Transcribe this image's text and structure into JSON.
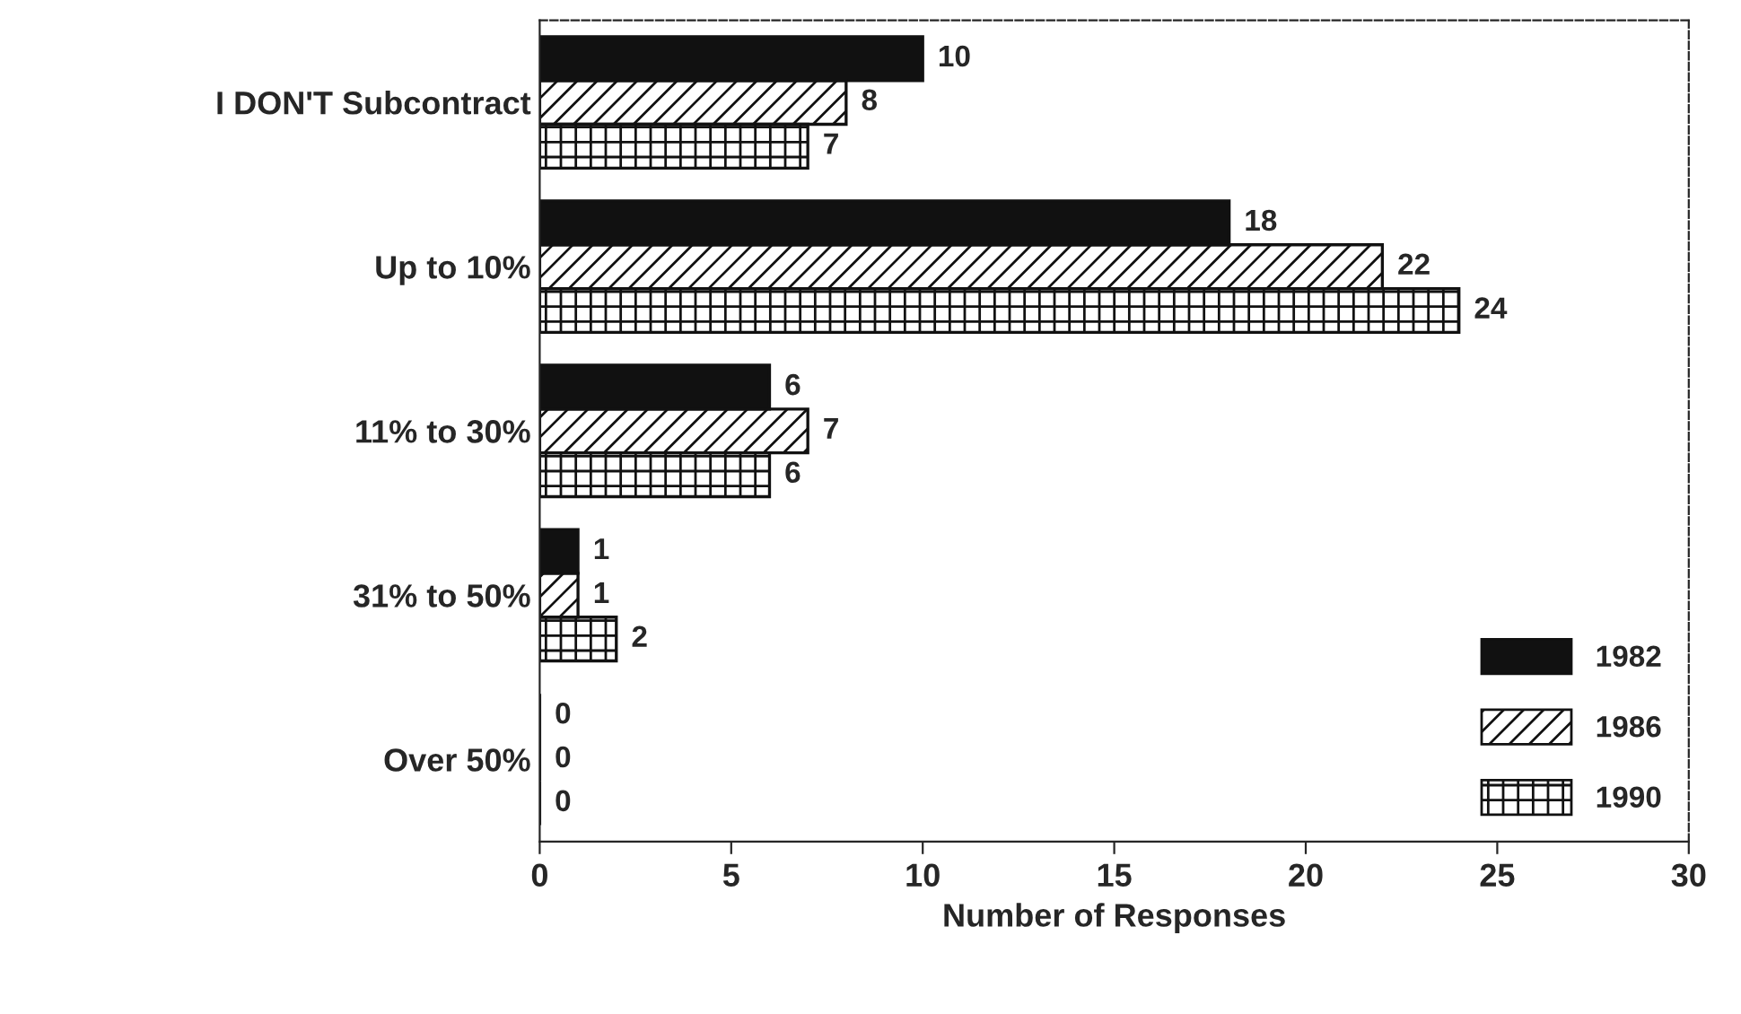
{
  "chart_data": {
    "type": "bar",
    "orientation": "horizontal",
    "xlabel": "Number of Responses",
    "categories": [
      "I DON'T Subcontract",
      "Up to 10%",
      "11% to 30%",
      "31% to 50%",
      "Over 50%"
    ],
    "series": [
      {
        "name": "1982",
        "color": "#111111",
        "values": [
          10,
          18,
          6,
          1,
          0
        ]
      },
      {
        "name": "1986",
        "color": "#111111",
        "values": [
          8,
          22,
          7,
          1,
          0
        ]
      },
      {
        "name": "1990",
        "color": "#111111",
        "values": [
          7,
          24,
          6,
          2,
          0
        ]
      }
    ],
    "xlim": [
      0,
      30
    ],
    "xticks": [
      0,
      5,
      10,
      15,
      20,
      25,
      30
    ],
    "data_labels": true,
    "legend": "bottom right",
    "grid": false
  }
}
